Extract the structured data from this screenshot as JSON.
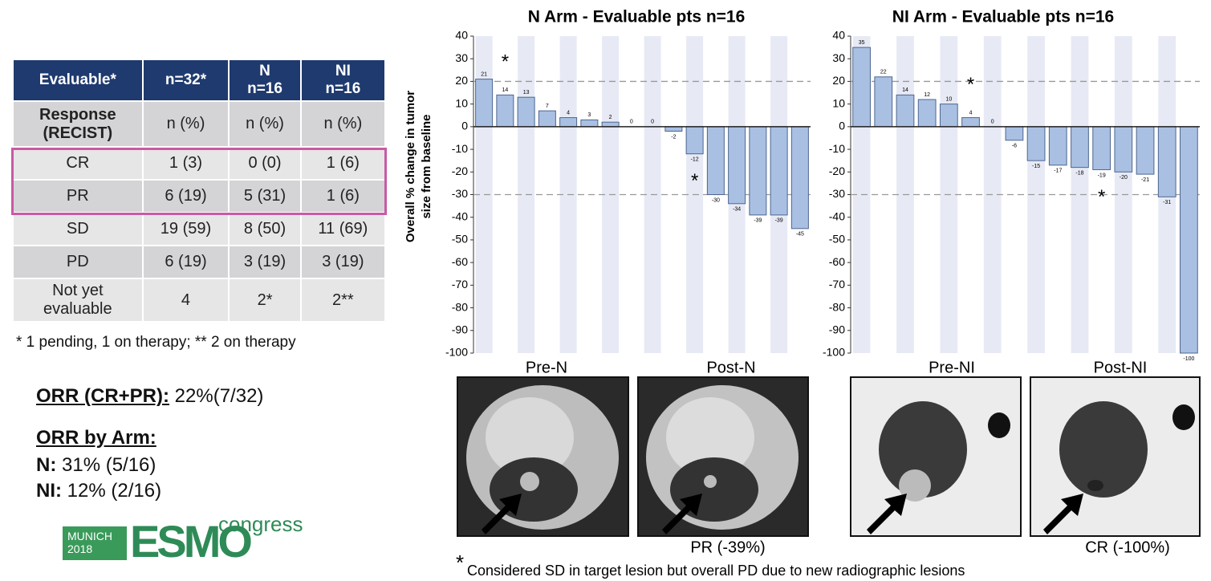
{
  "table": {
    "header": [
      "Evaluable*",
      "n=32*",
      "N\nn=16",
      "NI\nn=16"
    ],
    "rows": [
      [
        "Response\n(RECIST)",
        "n (%)",
        "n (%)",
        "n (%)"
      ],
      [
        "CR",
        "1 (3)",
        "0 (0)",
        "1 (6)"
      ],
      [
        "PR",
        "6 (19)",
        "5 (31)",
        "1 (6)"
      ],
      [
        "SD",
        "19 (59)",
        "8 (50)",
        "11 (69)"
      ],
      [
        "PD",
        "6 (19)",
        "3 (19)",
        "3 (19)"
      ],
      [
        "Not yet\nevaluable",
        "4",
        "2*",
        "2**"
      ]
    ],
    "footnote": "* 1 pending, 1 on therapy; ** 2 on therapy"
  },
  "summary": {
    "orr_label": "ORR (CR+PR):",
    "orr_value": "22%(7/32)",
    "by_arm_label": "ORR by Arm:",
    "arms": [
      {
        "label": "N:",
        "value": "31% (5/16)"
      },
      {
        "label": "NI:",
        "value": "12% (2/16)"
      }
    ]
  },
  "logo": {
    "city": "MUNICH\n2018",
    "brand": "ESMO",
    "word": "congress"
  },
  "chart_data": [
    {
      "type": "bar",
      "title": "N Arm - Evaluable pts n=16",
      "y_label": [
        "Overall % change in tumor",
        "size from baseline"
      ],
      "values": [
        21,
        14,
        13,
        7,
        4,
        3,
        2,
        0,
        0,
        -2,
        -12,
        -30,
        -34,
        -39,
        -39,
        -45
      ],
      "color": "#a9c0e3",
      "ylim": [
        -100,
        40
      ],
      "yticks": [
        -100,
        -90,
        -80,
        -70,
        -60,
        -50,
        -40,
        -30,
        -20,
        -10,
        0,
        10,
        20,
        30,
        40
      ],
      "reference_lines": [
        20,
        -30
      ],
      "annotations": [
        {
          "text": "*",
          "category_index": 1
        },
        {
          "text": "*",
          "category_index": 10
        }
      ]
    },
    {
      "type": "bar",
      "title": "NI Arm - Evaluable pts n=16",
      "values": [
        35,
        22,
        14,
        12,
        10,
        4,
        0,
        -6,
        -15,
        -17,
        -18,
        -19,
        -20,
        -21,
        -31,
        -100
      ],
      "color": "#a9c0e3",
      "ylim": [
        -100,
        40
      ],
      "yticks": [
        -100,
        -90,
        -80,
        -70,
        -60,
        -50,
        -40,
        -30,
        -20,
        -10,
        0,
        10,
        20,
        30,
        40
      ],
      "reference_lines": [
        20,
        -30
      ],
      "annotations": [
        {
          "text": "*",
          "category_index": 5
        },
        {
          "text": "*",
          "category_index": 11
        }
      ]
    }
  ],
  "images": {
    "labels": [
      "Pre-N",
      "Post-N",
      "Pre-NI",
      "Post-NI"
    ],
    "results": [
      "PR (-39%)",
      "CR (-100%)"
    ],
    "footnote_mark": "*",
    "footnote": "Considered SD in target lesion but overall PD due to new radiographic lesions"
  }
}
